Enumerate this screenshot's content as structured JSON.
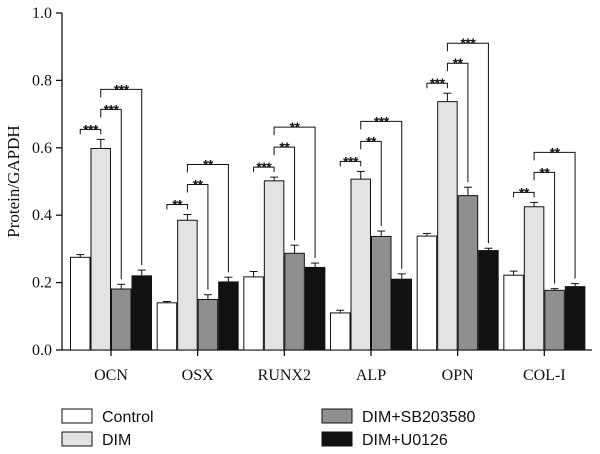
{
  "chart_data": {
    "type": "bar",
    "title": "",
    "xlabel": "",
    "ylabel": "Protein/GAPDH",
    "ylim": [
      0,
      1.0
    ],
    "yticks": [
      "0.0",
      "0.2",
      "0.4",
      "0.6",
      "0.8",
      "1.0"
    ],
    "categories": [
      "OCN",
      "OSX",
      "RUNX2",
      "ALP",
      "OPN",
      "COL-I"
    ],
    "series": [
      {
        "name": "Control",
        "color": "#ffffff",
        "values": [
          0.275,
          0.14,
          0.217,
          0.11,
          0.338,
          0.222
        ],
        "errors": [
          0.008,
          0.004,
          0.016,
          0.008,
          0.008,
          0.012
        ]
      },
      {
        "name": "DIM",
        "color": "#e3e3e3",
        "values": [
          0.598,
          0.385,
          0.502,
          0.507,
          0.737,
          0.425
        ],
        "errors": [
          0.027,
          0.017,
          0.011,
          0.023,
          0.025,
          0.013
        ]
      },
      {
        "name": "DIM+SB203580",
        "color": "#8f8f8f",
        "values": [
          0.181,
          0.15,
          0.287,
          0.337,
          0.458,
          0.177
        ],
        "errors": [
          0.014,
          0.014,
          0.024,
          0.016,
          0.025,
          0.005
        ]
      },
      {
        "name": "DIM+U0126",
        "color": "#111111",
        "values": [
          0.22,
          0.202,
          0.245,
          0.21,
          0.295,
          0.188
        ],
        "errors": [
          0.017,
          0.014,
          0.013,
          0.016,
          0.007,
          0.009
        ]
      }
    ],
    "significance": [
      {
        "category": "OCN",
        "label": "***",
        "from_series": 0,
        "to_series": 1
      },
      {
        "category": "OCN",
        "label": "***",
        "from_series": 1,
        "to_series": 2
      },
      {
        "category": "OCN",
        "label": "***",
        "from_series": 1,
        "to_series": 3
      },
      {
        "category": "OSX",
        "label": "**",
        "from_series": 0,
        "to_series": 1
      },
      {
        "category": "OSX",
        "label": "**",
        "from_series": 1,
        "to_series": 2
      },
      {
        "category": "OSX",
        "label": "**",
        "from_series": 1,
        "to_series": 3
      },
      {
        "category": "RUNX2",
        "label": "***",
        "from_series": 0,
        "to_series": 1
      },
      {
        "category": "RUNX2",
        "label": "**",
        "from_series": 1,
        "to_series": 2
      },
      {
        "category": "RUNX2",
        "label": "**",
        "from_series": 1,
        "to_series": 3
      },
      {
        "category": "ALP",
        "label": "***",
        "from_series": 0,
        "to_series": 1
      },
      {
        "category": "ALP",
        "label": "**",
        "from_series": 1,
        "to_series": 2
      },
      {
        "category": "ALP",
        "label": "***",
        "from_series": 1,
        "to_series": 3
      },
      {
        "category": "OPN",
        "label": "***",
        "from_series": 0,
        "to_series": 1
      },
      {
        "category": "OPN",
        "label": "**",
        "from_series": 1,
        "to_series": 2
      },
      {
        "category": "OPN",
        "label": "***",
        "from_series": 1,
        "to_series": 3
      },
      {
        "category": "COL-I",
        "label": "**",
        "from_series": 0,
        "to_series": 1
      },
      {
        "category": "COL-I",
        "label": "**",
        "from_series": 1,
        "to_series": 2
      },
      {
        "category": "COL-I",
        "label": "**",
        "from_series": 1,
        "to_series": 3
      }
    ],
    "legend_position": "bottom",
    "grid": false
  }
}
